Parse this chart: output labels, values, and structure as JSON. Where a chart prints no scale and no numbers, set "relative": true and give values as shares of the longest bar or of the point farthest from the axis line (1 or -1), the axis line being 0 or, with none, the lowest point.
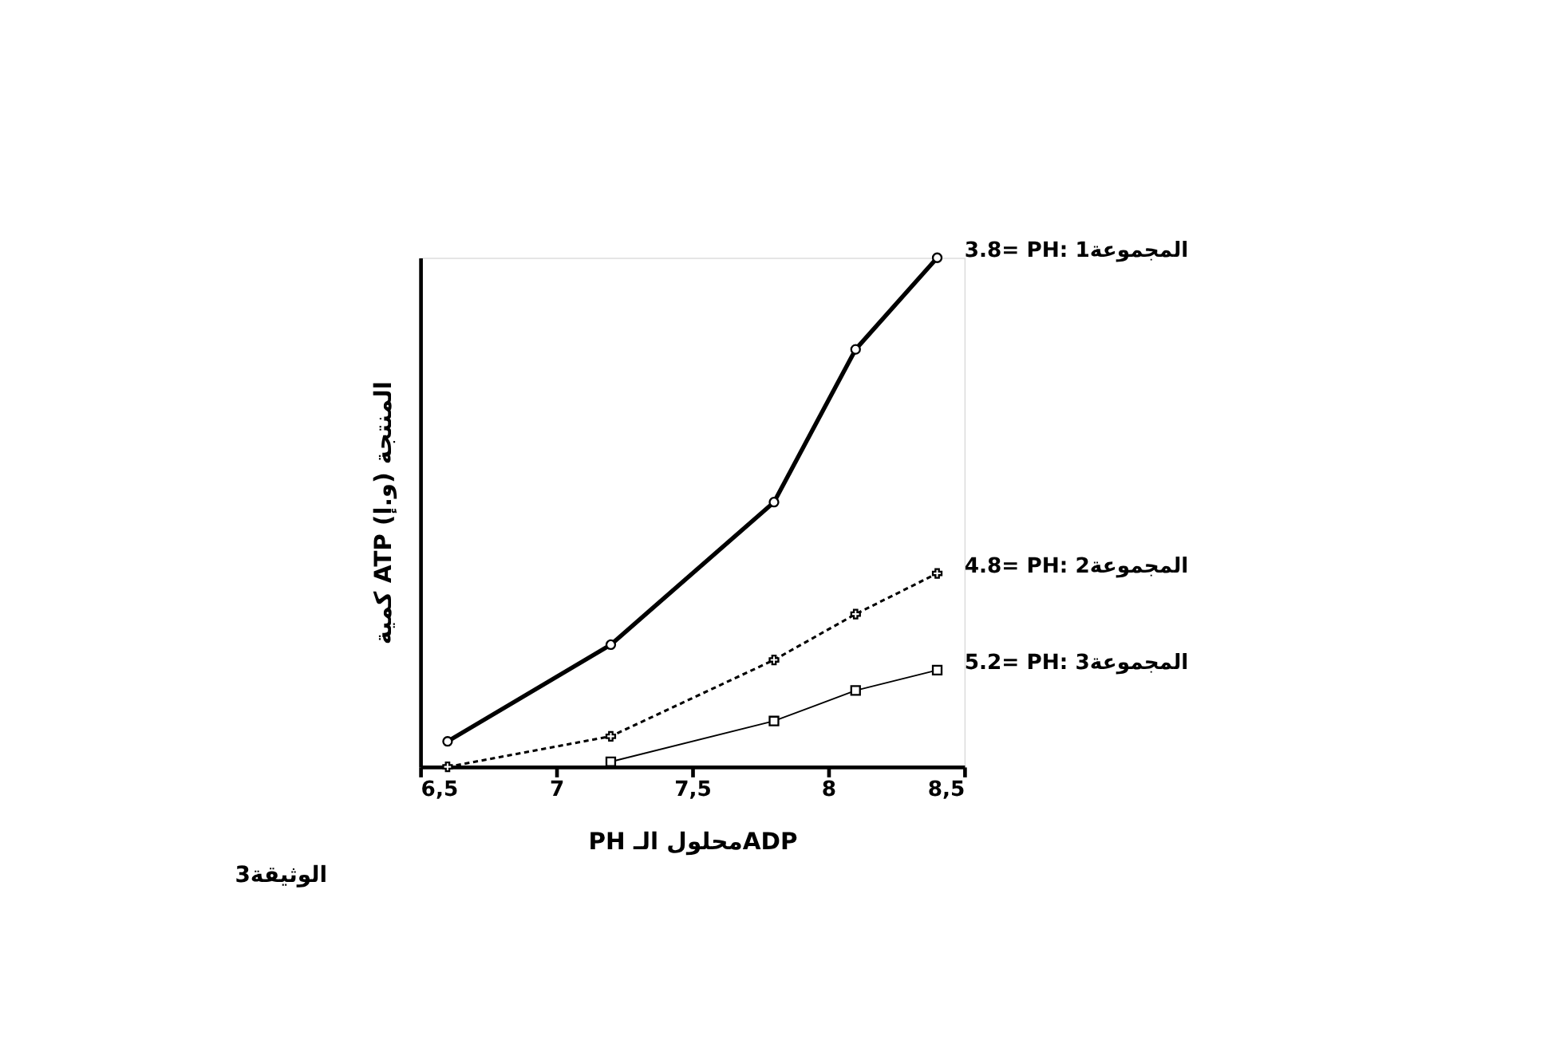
{
  "chart_data": {
    "type": "line",
    "relative": true,
    "xlabel": "PH محلول الـADP",
    "ylabel": "كمية ATP المنتجة (و.إ)",
    "xlim": [
      6.5,
      8.5
    ],
    "xticks": [
      {
        "value": 6.5,
        "label": "6,5"
      },
      {
        "value": 7,
        "label": "7"
      },
      {
        "value": 7.5,
        "label": "7,5"
      },
      {
        "value": 8,
        "label": "8"
      },
      {
        "value": 8.5,
        "label": "8,5"
      }
    ],
    "grid": false,
    "annotations": [
      "الوثيقة3"
    ],
    "series": [
      {
        "name": "3.8= PH: المجموعة1",
        "color": "#000000",
        "marker": "circle",
        "line_style": "solid",
        "x": [
          6.6,
          7.2,
          7.8,
          8.1,
          8.4
        ],
        "values": [
          0.05,
          0.24,
          0.52,
          0.82,
          1
        ]
      },
      {
        "name": "4.8= PH: المجموعة2",
        "color": "#000000",
        "marker": "cross",
        "line_style": "dashed",
        "x": [
          6.6,
          7.2,
          7.8,
          8.1,
          8.4
        ],
        "values": [
          0,
          0.06,
          0.21,
          0.3,
          0.38
        ]
      },
      {
        "name": "5.2= PH: المجموعة3",
        "color": "#000000",
        "marker": "square",
        "line_style": "solid",
        "x": [
          7.2,
          7.8,
          8.1,
          8.4
        ],
        "values": [
          0.01,
          0.09,
          0.15,
          0.19
        ]
      }
    ]
  }
}
